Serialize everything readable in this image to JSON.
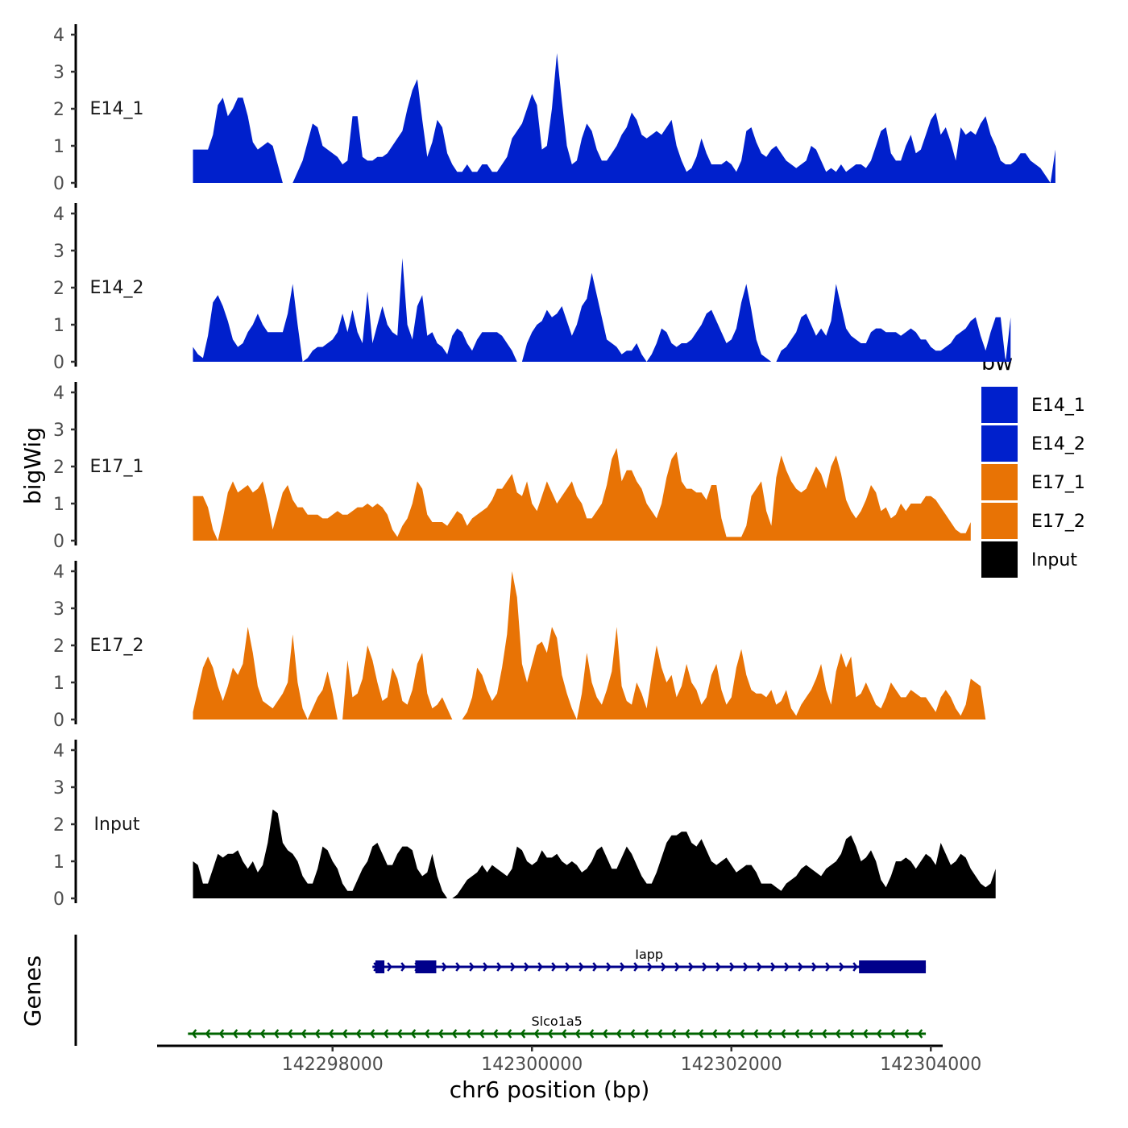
{
  "chart_data": {
    "type": "area",
    "chromosome": "chr6",
    "xlabel": "chr6 position (bp)",
    "ylabel": "bigWig",
    "genes_label": "Genes",
    "xlim": [
      142296200,
      142304200
    ],
    "x_ticks": [
      142298000,
      142300000,
      142302000,
      142304000
    ],
    "x_tick_labels": [
      "142298000",
      "142300000",
      "142302000",
      "142304000"
    ],
    "ylim": [
      0,
      4.2
    ],
    "y_ticks": [
      0,
      1,
      2,
      3,
      4
    ],
    "y_tick_labels": [
      "0",
      "1",
      "2",
      "3",
      "4"
    ],
    "legend": {
      "title": "bw",
      "entries": [
        {
          "label": "E14_1",
          "color": "#0020CC"
        },
        {
          "label": "E14_2",
          "color": "#0020CC"
        },
        {
          "label": "E17_1",
          "color": "#E87305"
        },
        {
          "label": "E17_2",
          "color": "#E87305"
        },
        {
          "label": "Input",
          "color": "#000000"
        }
      ]
    },
    "tracks": [
      {
        "name": "E14_1",
        "color": "#0020CC",
        "x_start": 142296600,
        "x_step": 50,
        "values": [
          0.9,
          0.9,
          0.9,
          0.9,
          1.3,
          2.1,
          2.3,
          1.8,
          2.0,
          2.3,
          2.3,
          1.8,
          1.1,
          0.9,
          1.0,
          1.1,
          1.0,
          0.5,
          0.0,
          0.0,
          0.0,
          0.3,
          0.6,
          1.1,
          1.6,
          1.5,
          1.0,
          0.9,
          0.8,
          0.7,
          0.5,
          0.6,
          1.8,
          1.8,
          0.7,
          0.6,
          0.6,
          0.7,
          0.7,
          0.8,
          1.0,
          1.2,
          1.4,
          2.0,
          2.5,
          2.8,
          1.7,
          0.7,
          1.1,
          1.7,
          1.5,
          0.8,
          0.5,
          0.3,
          0.3,
          0.5,
          0.3,
          0.3,
          0.5,
          0.5,
          0.3,
          0.3,
          0.5,
          0.7,
          1.2,
          1.4,
          1.6,
          2.0,
          2.4,
          2.1,
          0.9,
          1.0,
          2.0,
          3.5,
          2.2,
          1.0,
          0.5,
          0.6,
          1.2,
          1.6,
          1.4,
          0.9,
          0.6,
          0.6,
          0.8,
          1.0,
          1.3,
          1.5,
          1.9,
          1.7,
          1.3,
          1.2,
          1.3,
          1.4,
          1.3,
          1.5,
          1.7,
          1.0,
          0.6,
          0.3,
          0.4,
          0.7,
          1.2,
          0.8,
          0.5,
          0.5,
          0.5,
          0.6,
          0.5,
          0.3,
          0.6,
          1.4,
          1.5,
          1.1,
          0.8,
          0.7,
          0.9,
          1.0,
          0.8,
          0.6,
          0.5,
          0.4,
          0.5,
          0.6,
          1.0,
          0.9,
          0.6,
          0.3,
          0.4,
          0.3,
          0.5,
          0.3,
          0.4,
          0.5,
          0.5,
          0.4,
          0.6,
          1.0,
          1.4,
          1.5,
          0.8,
          0.6,
          0.6,
          1.0,
          1.3,
          0.8,
          0.9,
          1.3,
          1.7,
          1.9,
          1.3,
          1.5,
          1.1,
          0.6,
          1.5,
          1.3,
          1.4,
          1.3,
          1.6,
          1.8,
          1.3,
          1.0,
          0.6,
          0.5,
          0.5,
          0.6,
          0.8,
          0.8,
          0.6,
          0.5,
          0.4,
          0.2,
          0.0,
          0.9
        ]
      },
      {
        "name": "E14_2",
        "color": "#0020CC",
        "x_start": 142296600,
        "x_step": 50,
        "values": [
          0.4,
          0.2,
          0.1,
          0.7,
          1.6,
          1.8,
          1.5,
          1.1,
          0.6,
          0.4,
          0.5,
          0.8,
          1.0,
          1.3,
          1.0,
          0.8,
          0.8,
          0.8,
          0.8,
          1.3,
          2.1,
          1.0,
          0.0,
          0.1,
          0.3,
          0.4,
          0.4,
          0.5,
          0.6,
          0.8,
          1.3,
          0.8,
          1.4,
          0.8,
          0.5,
          1.9,
          0.5,
          1.0,
          1.5,
          1.0,
          0.8,
          0.7,
          2.8,
          1.0,
          0.6,
          1.5,
          1.8,
          0.7,
          0.8,
          0.5,
          0.4,
          0.2,
          0.7,
          0.9,
          0.8,
          0.5,
          0.3,
          0.6,
          0.8,
          0.8,
          0.8,
          0.8,
          0.7,
          0.5,
          0.3,
          0.0,
          0.0,
          0.5,
          0.8,
          1.0,
          1.1,
          1.4,
          1.2,
          1.3,
          1.5,
          1.1,
          0.7,
          1.0,
          1.5,
          1.7,
          2.4,
          1.8,
          1.2,
          0.6,
          0.5,
          0.4,
          0.2,
          0.3,
          0.3,
          0.5,
          0.2,
          0.0,
          0.2,
          0.5,
          0.9,
          0.8,
          0.5,
          0.4,
          0.5,
          0.5,
          0.6,
          0.8,
          1.0,
          1.3,
          1.4,
          1.1,
          0.8,
          0.5,
          0.6,
          0.9,
          1.6,
          2.1,
          1.4,
          0.6,
          0.2,
          0.1,
          0.0,
          0.0,
          0.3,
          0.4,
          0.6,
          0.8,
          1.2,
          1.3,
          1.0,
          0.7,
          0.9,
          0.7,
          1.1,
          2.1,
          1.5,
          0.9,
          0.7,
          0.6,
          0.5,
          0.5,
          0.8,
          0.9,
          0.9,
          0.8,
          0.8,
          0.8,
          0.7,
          0.8,
          0.9,
          0.8,
          0.6,
          0.6,
          0.4,
          0.3,
          0.3,
          0.4,
          0.5,
          0.7,
          0.8,
          0.9,
          1.1,
          1.2,
          0.7,
          0.3,
          0.8,
          1.2,
          1.2,
          0.0,
          1.2
        ]
      },
      {
        "name": "E17_1",
        "color": "#E87305",
        "x_start": 142296600,
        "x_step": 50,
        "values": [
          1.2,
          1.2,
          1.2,
          0.9,
          0.3,
          0.0,
          0.6,
          1.3,
          1.6,
          1.3,
          1.4,
          1.5,
          1.3,
          1.4,
          1.6,
          1.0,
          0.3,
          0.8,
          1.3,
          1.5,
          1.1,
          0.9,
          0.9,
          0.7,
          0.7,
          0.7,
          0.6,
          0.6,
          0.7,
          0.8,
          0.7,
          0.7,
          0.8,
          0.9,
          0.9,
          1.0,
          0.9,
          1.0,
          0.9,
          0.7,
          0.3,
          0.1,
          0.4,
          0.6,
          1.0,
          1.6,
          1.4,
          0.7,
          0.5,
          0.5,
          0.5,
          0.4,
          0.6,
          0.8,
          0.7,
          0.4,
          0.6,
          0.7,
          0.8,
          0.9,
          1.1,
          1.4,
          1.4,
          1.6,
          1.8,
          1.3,
          1.2,
          1.6,
          1.0,
          0.8,
          1.2,
          1.6,
          1.3,
          1.0,
          1.2,
          1.4,
          1.6,
          1.2,
          1.0,
          0.6,
          0.6,
          0.8,
          1.0,
          1.5,
          2.2,
          2.5,
          1.6,
          1.9,
          1.9,
          1.6,
          1.4,
          1.0,
          0.8,
          0.6,
          1.0,
          1.7,
          2.2,
          2.4,
          1.6,
          1.4,
          1.4,
          1.3,
          1.3,
          1.1,
          1.5,
          1.5,
          0.6,
          0.1,
          0.1,
          0.1,
          0.1,
          0.4,
          1.2,
          1.4,
          1.6,
          0.8,
          0.4,
          1.7,
          2.3,
          1.9,
          1.6,
          1.4,
          1.3,
          1.4,
          1.7,
          2.0,
          1.8,
          1.4,
          2.0,
          2.3,
          1.8,
          1.1,
          0.8,
          0.6,
          0.8,
          1.1,
          1.5,
          1.3,
          0.8,
          0.9,
          0.6,
          0.7,
          1.0,
          0.8,
          1.0,
          1.0,
          1.0,
          1.2,
          1.2,
          1.1,
          0.9,
          0.7,
          0.5,
          0.3,
          0.2,
          0.2,
          0.5
        ]
      },
      {
        "name": "E17_2",
        "color": "#E87305",
        "x_start": 142296600,
        "x_step": 50,
        "values": [
          0.2,
          0.8,
          1.4,
          1.7,
          1.4,
          0.9,
          0.5,
          0.9,
          1.4,
          1.2,
          1.5,
          2.5,
          1.8,
          0.9,
          0.5,
          0.4,
          0.3,
          0.5,
          0.7,
          1.0,
          2.3,
          1.0,
          0.3,
          0.0,
          0.3,
          0.6,
          0.8,
          1.3,
          0.7,
          0.0,
          0.0,
          1.6,
          0.6,
          0.7,
          1.1,
          2.0,
          1.6,
          1.0,
          0.5,
          0.6,
          1.4,
          1.1,
          0.5,
          0.4,
          0.8,
          1.5,
          1.8,
          0.7,
          0.3,
          0.4,
          0.6,
          0.3,
          0.0,
          0.0,
          0.0,
          0.2,
          0.6,
          1.4,
          1.2,
          0.8,
          0.5,
          0.7,
          1.4,
          2.3,
          4.0,
          3.3,
          1.5,
          1.0,
          1.5,
          2.0,
          2.1,
          1.8,
          2.5,
          2.2,
          1.2,
          0.7,
          0.3,
          0.0,
          0.7,
          1.8,
          1.0,
          0.6,
          0.4,
          0.8,
          1.3,
          2.5,
          0.9,
          0.5,
          0.4,
          1.0,
          0.7,
          0.3,
          1.2,
          2.0,
          1.4,
          1.0,
          1.2,
          0.6,
          0.9,
          1.5,
          1.0,
          0.8,
          0.4,
          0.6,
          1.2,
          1.5,
          0.8,
          0.4,
          0.6,
          1.4,
          1.9,
          1.2,
          0.8,
          0.7,
          0.7,
          0.6,
          0.8,
          0.4,
          0.5,
          0.8,
          0.3,
          0.1,
          0.4,
          0.6,
          0.8,
          1.1,
          1.5,
          0.8,
          0.4,
          1.3,
          1.8,
          1.4,
          1.7,
          0.6,
          0.7,
          1.0,
          0.7,
          0.4,
          0.3,
          0.6,
          1.0,
          0.8,
          0.6,
          0.6,
          0.8,
          0.7,
          0.6,
          0.6,
          0.4,
          0.2,
          0.6,
          0.8,
          0.6,
          0.3,
          0.1,
          0.4,
          1.1,
          1.0,
          0.9,
          0.0
        ]
      },
      {
        "name": "Input",
        "color": "#000000",
        "x_start": 142296600,
        "x_step": 50,
        "values": [
          1.0,
          0.9,
          0.4,
          0.4,
          0.8,
          1.2,
          1.1,
          1.2,
          1.2,
          1.3,
          1.0,
          0.8,
          1.0,
          0.7,
          0.9,
          1.5,
          2.4,
          2.3,
          1.5,
          1.3,
          1.2,
          1.0,
          0.6,
          0.4,
          0.4,
          0.8,
          1.4,
          1.3,
          1.0,
          0.8,
          0.4,
          0.2,
          0.2,
          0.5,
          0.8,
          1.0,
          1.4,
          1.5,
          1.2,
          0.9,
          0.9,
          1.2,
          1.4,
          1.4,
          1.3,
          0.8,
          0.6,
          0.7,
          1.2,
          0.6,
          0.2,
          0.0,
          0.0,
          0.1,
          0.3,
          0.5,
          0.6,
          0.7,
          0.9,
          0.7,
          0.9,
          0.8,
          0.7,
          0.6,
          0.8,
          1.4,
          1.3,
          1.0,
          0.9,
          1.0,
          1.3,
          1.1,
          1.1,
          1.2,
          1.0,
          0.9,
          1.0,
          0.9,
          0.7,
          0.8,
          1.0,
          1.3,
          1.4,
          1.1,
          0.8,
          0.8,
          1.1,
          1.4,
          1.2,
          0.9,
          0.6,
          0.4,
          0.4,
          0.7,
          1.1,
          1.5,
          1.7,
          1.7,
          1.8,
          1.8,
          1.5,
          1.4,
          1.6,
          1.3,
          1.0,
          0.9,
          1.0,
          1.1,
          0.9,
          0.7,
          0.8,
          0.9,
          0.9,
          0.7,
          0.4,
          0.4,
          0.4,
          0.3,
          0.2,
          0.4,
          0.5,
          0.6,
          0.8,
          0.9,
          0.8,
          0.7,
          0.6,
          0.8,
          0.9,
          1.0,
          1.2,
          1.6,
          1.7,
          1.4,
          1.0,
          1.1,
          1.3,
          1.0,
          0.5,
          0.3,
          0.6,
          1.0,
          1.0,
          1.1,
          1.0,
          0.8,
          1.0,
          1.2,
          1.1,
          0.9,
          1.5,
          1.2,
          0.9,
          1.0,
          1.2,
          1.1,
          0.8,
          0.6,
          0.4,
          0.3,
          0.4,
          0.8
        ]
      }
    ],
    "genes": [
      {
        "name": "Iapp",
        "strand": "+",
        "color": "#00008B",
        "start": 142298400,
        "end": 142303950,
        "exons": [
          [
            142298430,
            142298520
          ],
          [
            142298830,
            142299040
          ],
          [
            142303280,
            142303950
          ]
        ]
      },
      {
        "name": "Slco1a5",
        "strand": "-",
        "color": "#006400",
        "start": 142296550,
        "end": 142303950,
        "exons": []
      }
    ]
  }
}
